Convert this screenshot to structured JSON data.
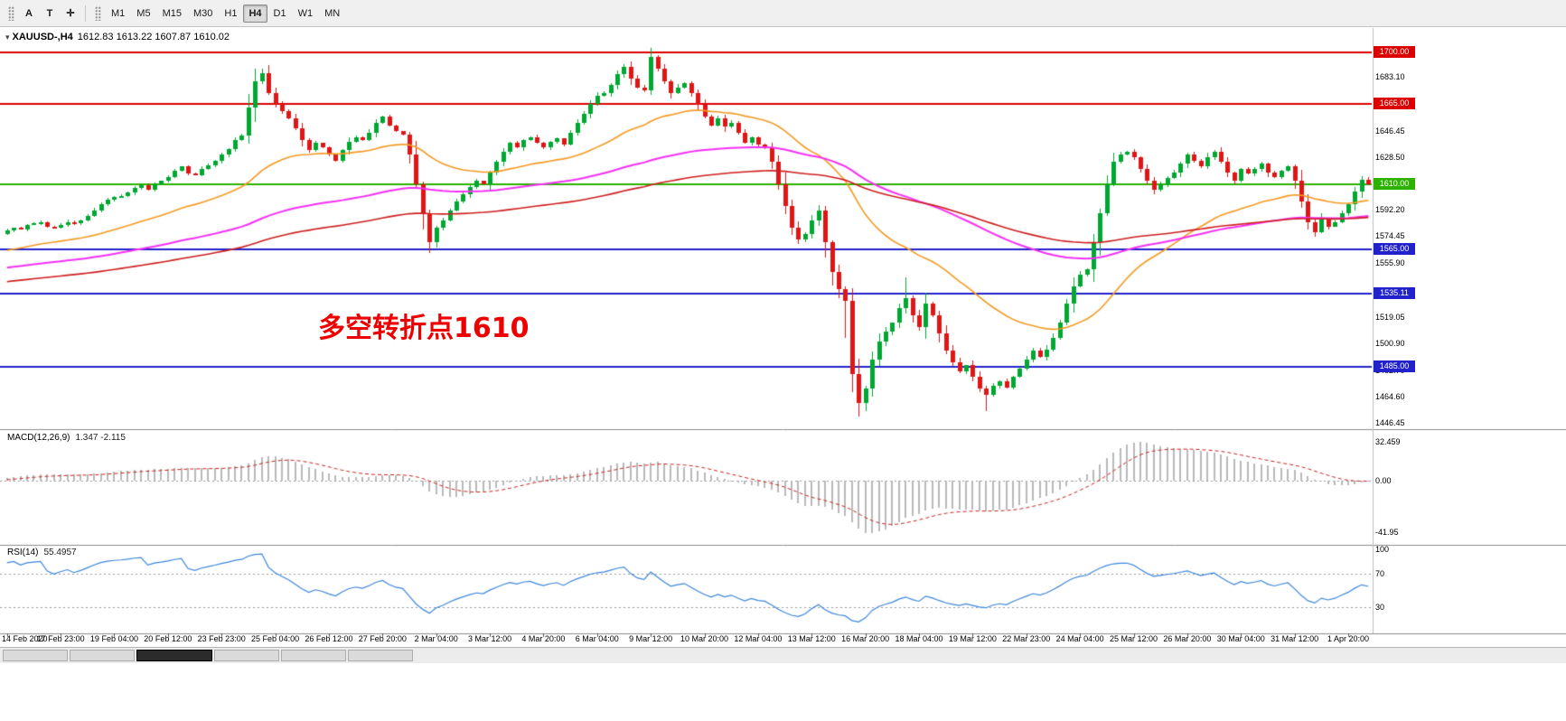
{
  "toolbar": {
    "tools": [
      {
        "name": "cursor-tool-button",
        "label": "A"
      },
      {
        "name": "text-tool-button",
        "label": "T"
      },
      {
        "name": "crosshair-tool-button",
        "label": "✛"
      }
    ],
    "timeframes": [
      {
        "label": "M1"
      },
      {
        "label": "M5"
      },
      {
        "label": "M15"
      },
      {
        "label": "M30"
      },
      {
        "label": "H1"
      },
      {
        "label": "H4",
        "active": true
      },
      {
        "label": "D1"
      },
      {
        "label": "W1"
      },
      {
        "label": "MN"
      }
    ]
  },
  "chart": {
    "title_symbol": "XAUUSD-,H4",
    "title_values": "1612.83 1613.22 1607.87 1610.02",
    "annotation": {
      "text": "多空转折点1610",
      "color": "#ee0000"
    }
  },
  "chart_data": {
    "type": "candlestick",
    "symbol": "XAUUSD-",
    "timeframe": "H4",
    "current_ohlc": {
      "open": "1612.83",
      "high": "1613.22",
      "low": "1607.87",
      "close": "1610.02"
    },
    "candle_colors": {
      "up": "#00a832",
      "down": "#e01616"
    },
    "price_axis": {
      "min": 1443,
      "max": 1716,
      "ticks": [
        {
          "value": 1683.1,
          "label": "1683.10"
        },
        {
          "value": 1646.45,
          "label": "1646.45"
        },
        {
          "value": 1628.5,
          "label": "1628.50"
        },
        {
          "value": 1592.2,
          "label": "1592.20"
        },
        {
          "value": 1574.45,
          "label": "1574.45"
        },
        {
          "value": 1555.9,
          "label": "1555.90"
        },
        {
          "value": 1519.05,
          "label": "1519.05"
        },
        {
          "value": 1500.9,
          "label": "1500.90"
        },
        {
          "value": 1482.7,
          "label": "1482.70"
        },
        {
          "value": 1464.6,
          "label": "1464.60"
        },
        {
          "value": 1446.45,
          "label": "1446.45"
        }
      ]
    },
    "levels": [
      {
        "name": "resistance-line-1700",
        "price": 1700.0,
        "label": "1700.00",
        "color": "#dd0000",
        "lw": 2
      },
      {
        "name": "resistance-line-1665",
        "price": 1665.0,
        "label": "1665.00",
        "color": "#dd0000",
        "lw": 2
      },
      {
        "name": "pivot-line-1610",
        "price": 1610.0,
        "label": "1610.00",
        "color": "#2db200",
        "lw": 2
      },
      {
        "name": "support-line-1565",
        "price": 1565.0,
        "label": "1565.00",
        "color": "#2222cc",
        "lw": 2
      },
      {
        "name": "support-line-1535",
        "price": 1535.11,
        "label": "1535.11",
        "color": "#2222cc",
        "lw": 2
      },
      {
        "name": "support-line-1485",
        "price": 1485.0,
        "label": "1485.00",
        "color": "#2222cc",
        "lw": 2
      }
    ],
    "x_axis": {
      "label_every": 8,
      "labels": [
        "14 Feb 2020",
        "17 Feb 23:00",
        "19 Feb 04:00",
        "20 Feb 12:00",
        "23 Feb 23:00",
        "25 Feb 04:00",
        "26 Feb 12:00",
        "27 Feb 20:00",
        "2 Mar 04:00",
        "3 Mar 12:00",
        "4 Mar 20:00",
        "6 Mar 04:00",
        "9 Mar 12:00",
        "10 Mar 20:00",
        "12 Mar 04:00",
        "13 Mar 12:00",
        "16 Mar 20:00",
        "18 Mar 04:00",
        "19 Mar 12:00",
        "22 Mar 23:00",
        "24 Mar 04:00",
        "25 Mar 12:00",
        "26 Mar 20:00",
        "30 Mar 04:00",
        "31 Mar 12:00",
        "1 Apr 20:00"
      ]
    },
    "first_open": 1576,
    "closes": [
      1578,
      1580,
      1579,
      1582,
      1583,
      1584,
      1581,
      1580,
      1582,
      1584,
      1583,
      1585,
      1588,
      1592,
      1596,
      1599,
      1601,
      1602,
      1604,
      1607,
      1609,
      1606,
      1610,
      1612,
      1615,
      1619,
      1622,
      1617,
      1616,
      1620,
      1623,
      1626,
      1630,
      1634,
      1640,
      1643,
      1662,
      1680,
      1686,
      1672,
      1665,
      1660,
      1655,
      1648,
      1640,
      1633,
      1638,
      1635,
      1630,
      1626,
      1633,
      1639,
      1642,
      1640,
      1645,
      1652,
      1656,
      1650,
      1646,
      1644,
      1630,
      1610,
      1590,
      1570,
      1580,
      1585,
      1592,
      1598,
      1603,
      1608,
      1612,
      1610,
      1618,
      1625,
      1632,
      1638,
      1635,
      1640,
      1642,
      1638,
      1635,
      1639,
      1641,
      1637,
      1645,
      1652,
      1658,
      1665,
      1670,
      1672,
      1678,
      1685,
      1690,
      1682,
      1676,
      1674,
      1697,
      1689,
      1680,
      1672,
      1676,
      1679,
      1672,
      1664,
      1656,
      1650,
      1655,
      1649,
      1652,
      1645,
      1638,
      1642,
      1637,
      1635,
      1625,
      1610,
      1595,
      1580,
      1572,
      1576,
      1585,
      1592,
      1570,
      1550,
      1538,
      1530,
      1480,
      1460,
      1470,
      1490,
      1502,
      1509,
      1515,
      1525,
      1532,
      1520,
      1512,
      1528,
      1520,
      1508,
      1496,
      1488,
      1482,
      1486,
      1478,
      1470,
      1466,
      1472,
      1475,
      1471,
      1478,
      1484,
      1490,
      1496,
      1492,
      1497,
      1505,
      1515,
      1528,
      1540,
      1548,
      1552,
      1570,
      1590,
      1610,
      1625,
      1630,
      1632,
      1628,
      1620,
      1612,
      1606,
      1610,
      1614,
      1618,
      1624,
      1630,
      1626,
      1622,
      1628,
      1632,
      1625,
      1618,
      1612,
      1620,
      1617,
      1620,
      1624,
      1618,
      1615,
      1619,
      1622,
      1612,
      1598,
      1584,
      1577,
      1586,
      1581,
      1584,
      1590,
      1596,
      1605,
      1613,
      1610
    ],
    "wick_overrides": {
      "37": {
        "high": 1689
      },
      "63": {
        "low": 1563
      },
      "96": {
        "high": 1703
      },
      "125": {
        "low": 1505
      },
      "127": {
        "low": 1451
      },
      "134": {
        "high": 1546
      },
      "146": {
        "low": 1455
      }
    },
    "ma_seed": {
      "n": 220,
      "from": 1477,
      "to": 1576,
      "amp": 12
    },
    "overlays": [
      {
        "name": "ma-fast-orange",
        "period": 34,
        "color": "#f59a23",
        "width": 1.6
      },
      {
        "name": "ma-mid-magenta",
        "period": 98,
        "color": "#f531f5",
        "width": 2
      },
      {
        "name": "ma-slow-red",
        "period": 150,
        "color": "#cf1f1f",
        "width": 1.6
      }
    ],
    "indicators": [
      {
        "name": "MACD",
        "label": "MACD(12,26,9)",
        "values_text": "1.347 -2.115",
        "params": {
          "fast": 12,
          "slow": 26,
          "signal": 9
        },
        "axis": {
          "min": -52,
          "max": 42,
          "ticks": [
            {
              "value": 32.459,
              "label": "32.459"
            },
            {
              "value": 0,
              "label": "0.00"
            },
            {
              "value": -41.95,
              "label": "-41.95"
            }
          ]
        },
        "colors": {
          "histogram": "#b9b9b9",
          "signal": "#cc2222"
        }
      },
      {
        "name": "RSI",
        "label": "RSI(14)",
        "value_text": "55.4957",
        "params": {
          "period": 14
        },
        "axis": {
          "min": 0,
          "max": 104,
          "ticks": [
            {
              "value": 100,
              "label": "100"
            },
            {
              "value": 70,
              "label": "70"
            },
            {
              "value": 30,
              "label": "30"
            }
          ],
          "levels": [
            70,
            30
          ]
        },
        "colors": {
          "line": "#3d87dd"
        }
      }
    ]
  },
  "bottom_bar": {
    "tabs": [
      "light",
      "light",
      "dark",
      "light",
      "light",
      "light"
    ]
  }
}
